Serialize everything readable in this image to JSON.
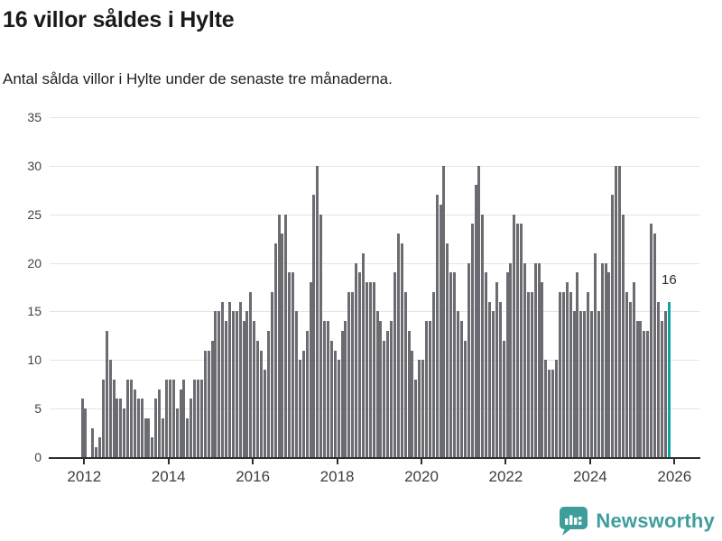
{
  "header": {
    "title": "16 villor såldes i Hylte",
    "subtitle": "Antal sålda villor i Hylte under de senaste tre månaderna."
  },
  "chart_data": {
    "type": "bar",
    "title": "16 villor såldes i Hylte",
    "subtitle": "Antal sålda villor i Hylte under de senaste tre månaderna.",
    "x_start": "2012-01",
    "x_interval": "month",
    "x_end": "2025-12",
    "ylim": [
      0,
      35
    ],
    "y_ticks": [
      0,
      5,
      10,
      15,
      20,
      25,
      30,
      35
    ],
    "x_tick_years": [
      2012,
      2014,
      2016,
      2018,
      2020,
      2022,
      2024,
      2026
    ],
    "grid": true,
    "legend": false,
    "bar_color": "#6b6b72",
    "highlight_color": "#12a3a7",
    "highlight_last_bar": true,
    "highlight_label": "16",
    "values": [
      6,
      5,
      0,
      3,
      1,
      2,
      8,
      13,
      10,
      8,
      6,
      6,
      5,
      8,
      8,
      7,
      6,
      6,
      4,
      4,
      2,
      6,
      7,
      4,
      8,
      8,
      8,
      5,
      7,
      8,
      4,
      6,
      8,
      8,
      8,
      11,
      11,
      12,
      15,
      15,
      16,
      14,
      16,
      15,
      15,
      16,
      14,
      15,
      17,
      14,
      12,
      11,
      9,
      13,
      17,
      22,
      25,
      23,
      25,
      19,
      19,
      15,
      10,
      11,
      13,
      18,
      27,
      30,
      25,
      14,
      14,
      12,
      11,
      10,
      13,
      14,
      17,
      17,
      20,
      19,
      21,
      18,
      18,
      18,
      15,
      14,
      12,
      13,
      14,
      19,
      23,
      22,
      17,
      13,
      11,
      8,
      10,
      10,
      14,
      14,
      17,
      27,
      26,
      30,
      22,
      19,
      19,
      15,
      14,
      12,
      20,
      24,
      28,
      30,
      25,
      19,
      16,
      15,
      18,
      16,
      12,
      19,
      20,
      25,
      24,
      24,
      20,
      17,
      17,
      20,
      20,
      18,
      10,
      9,
      9,
      10,
      17,
      17,
      18,
      17,
      15,
      19,
      15,
      15,
      17,
      15,
      21,
      15,
      20,
      20,
      19,
      27,
      30,
      30,
      25,
      17,
      16,
      18,
      14,
      14,
      13,
      13,
      24,
      23,
      16,
      14,
      15,
      16
    ]
  },
  "footer": {
    "brand": "Newsworthy",
    "logo_icon": "speech-bubble-bar-chart-icon",
    "brand_color": "#3f9e9c"
  }
}
